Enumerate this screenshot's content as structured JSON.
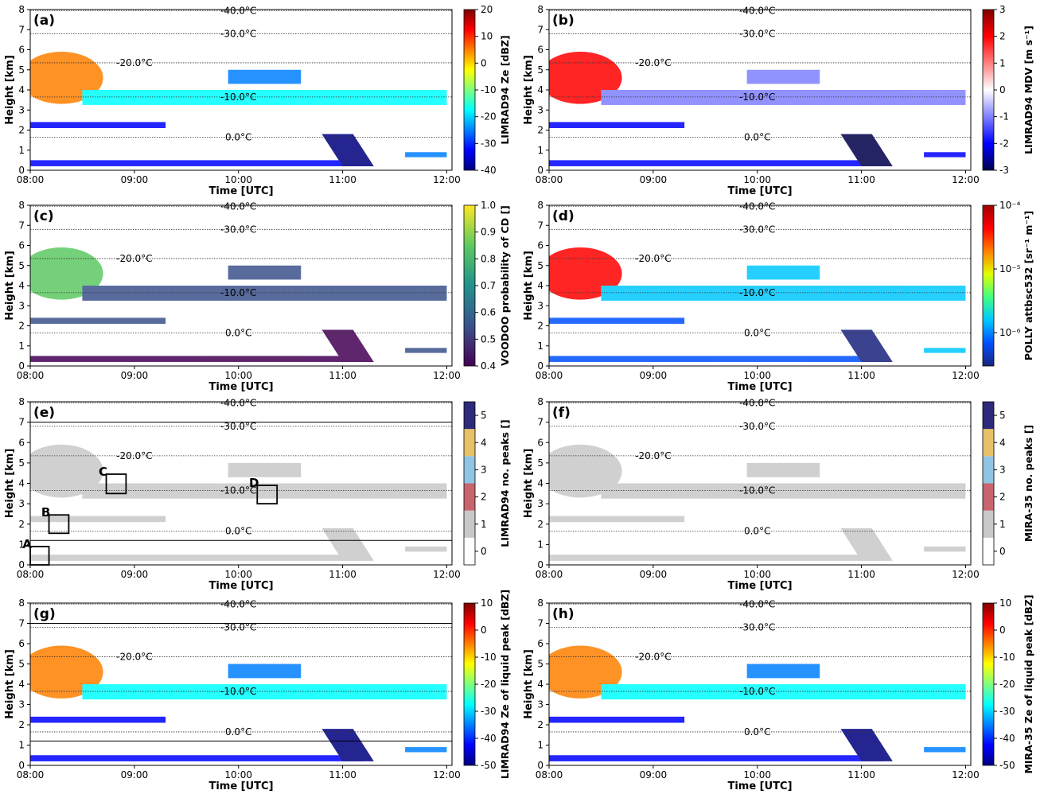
{
  "chart_data": [
    {
      "type": "heatmap",
      "panel": "(a)",
      "xlabel": "Time [UTC]",
      "ylabel": "Height [km]",
      "xlim": [
        8,
        12.05
      ],
      "xticks": [
        {
          "value": 8,
          "label": "08:00"
        },
        {
          "value": 9,
          "label": "09:00"
        },
        {
          "value": 10,
          "label": "10:00"
        },
        {
          "value": 11,
          "label": "11:00"
        },
        {
          "value": 12,
          "label": "12:00"
        }
      ],
      "ylim": [
        0,
        8
      ],
      "yticks": [
        0,
        1,
        2,
        3,
        4,
        5,
        6,
        7,
        8
      ],
      "isotherms": [
        {
          "label": "-40.0°C",
          "height": 7.95
        },
        {
          "label": "-30.0°C",
          "height": 6.8
        },
        {
          "label": "-20.0°C",
          "height": 5.35
        },
        {
          "label": "-10.0°C",
          "height": 3.65
        },
        {
          "label": "0.0°C",
          "height": 1.65
        }
      ],
      "colorbar": {
        "label": "LIMRAD94 Ze [dBZ]",
        "clim": [
          -40,
          20
        ],
        "cticks": [
          -40,
          -30,
          -20,
          -10,
          0,
          10,
          20
        ],
        "colormap": [
          "#00007f",
          "#0000ff",
          "#0080ff",
          "#00ffff",
          "#80ff80",
          "#ffff00",
          "#ff8000",
          "#ff0000",
          "#7f0000"
        ]
      }
    },
    {
      "type": "heatmap",
      "panel": "(b)",
      "xlabel": "Time [UTC]",
      "ylabel": "Height [km]",
      "xlim": [
        8,
        12.05
      ],
      "xticks": [
        {
          "value": 8,
          "label": "08:00"
        },
        {
          "value": 9,
          "label": "09:00"
        },
        {
          "value": 10,
          "label": "10:00"
        },
        {
          "value": 11,
          "label": "11:00"
        },
        {
          "value": 12,
          "label": "12:00"
        }
      ],
      "ylim": [
        0,
        8
      ],
      "yticks": [
        0,
        1,
        2,
        3,
        4,
        5,
        6,
        7,
        8
      ],
      "isotherms": [
        {
          "label": "-40.0°C",
          "height": 7.95
        },
        {
          "label": "-30.0°C",
          "height": 6.8
        },
        {
          "label": "-20.0°C",
          "height": 5.35
        },
        {
          "label": "-10.0°C",
          "height": 3.65
        },
        {
          "label": "0.0°C",
          "height": 1.65
        }
      ],
      "colorbar": {
        "label": "LIMRAD94 MDV [m s⁻¹]",
        "clim": [
          -3,
          3
        ],
        "cticks": [
          -3,
          -2,
          -1,
          0,
          1,
          2,
          3
        ],
        "colormap": [
          "#00004c",
          "#0000ff",
          "#8080ff",
          "#ffffff",
          "#ff8080",
          "#ff0000",
          "#800000"
        ]
      }
    },
    {
      "type": "heatmap",
      "panel": "(c)",
      "xlabel": "Time [UTC]",
      "ylabel": "Height [km]",
      "xlim": [
        8,
        12.05
      ],
      "xticks": [
        {
          "value": 8,
          "label": "08:00"
        },
        {
          "value": 9,
          "label": "09:00"
        },
        {
          "value": 10,
          "label": "10:00"
        },
        {
          "value": 11,
          "label": "11:00"
        },
        {
          "value": 12,
          "label": "12:00"
        }
      ],
      "ylim": [
        0,
        8
      ],
      "yticks": [
        0,
        1,
        2,
        3,
        4,
        5,
        6,
        7,
        8
      ],
      "isotherms": [
        {
          "label": "-40.0°C",
          "height": 7.95
        },
        {
          "label": "-30.0°C",
          "height": 6.8
        },
        {
          "label": "-20.0°C",
          "height": 5.35
        },
        {
          "label": "-10.0°C",
          "height": 3.65
        },
        {
          "label": "0.0°C",
          "height": 1.65
        }
      ],
      "colorbar": {
        "label": "VOODOO probability of CD []",
        "clim": [
          0.4,
          1.0
        ],
        "cticks": [
          0.4,
          0.5,
          0.6,
          0.7,
          0.8,
          0.9,
          {
            "value": 1.0,
            "label": "1.0"
          }
        ],
        "colormap": [
          "#440154",
          "#3b528b",
          "#21918c",
          "#5ec962",
          "#fde725"
        ]
      }
    },
    {
      "type": "heatmap",
      "panel": "(d)",
      "xlabel": "Time [UTC]",
      "ylabel": "Height [km]",
      "xlim": [
        8,
        12.05
      ],
      "xticks": [
        {
          "value": 8,
          "label": "08:00"
        },
        {
          "value": 9,
          "label": "09:00"
        },
        {
          "value": 10,
          "label": "10:00"
        },
        {
          "value": 11,
          "label": "11:00"
        },
        {
          "value": 12,
          "label": "12:00"
        }
      ],
      "ylim": [
        0,
        8
      ],
      "yticks": [
        0,
        1,
        2,
        3,
        4,
        5,
        6,
        7,
        8
      ],
      "isotherms": [
        {
          "label": "-40.0°C",
          "height": 7.95
        },
        {
          "label": "-30.0°C",
          "height": 6.8
        },
        {
          "label": "-20.0°C",
          "height": 5.35
        },
        {
          "label": "-10.0°C",
          "height": 3.65
        },
        {
          "label": "0.0°C",
          "height": 1.65
        }
      ],
      "colorbar": {
        "label": "POLLY attbsc532 [sr⁻¹ m⁻¹]",
        "log": true,
        "clim": [
          3e-07,
          0.0001
        ],
        "cticks": [
          {
            "value": 1e-06,
            "label": "10⁻⁶"
          },
          {
            "value": 1e-05,
            "label": "10⁻⁵"
          },
          {
            "value": 0.0001,
            "label": "10⁻⁴"
          }
        ],
        "colormap": [
          "#1a237e",
          "#0050ff",
          "#00c8ff",
          "#40ff80",
          "#e0ff00",
          "#ff8000",
          "#ff0000",
          "#a00000"
        ]
      }
    },
    {
      "type": "heatmap",
      "panel": "(e)",
      "xlabel": "Time [UTC]",
      "ylabel": "Height [km]",
      "xlim": [
        8,
        12.05
      ],
      "xticks": [
        {
          "value": 8,
          "label": "08:00"
        },
        {
          "value": 9,
          "label": "09:00"
        },
        {
          "value": 10,
          "label": "10:00"
        },
        {
          "value": 11,
          "label": "11:00"
        },
        {
          "value": 12,
          "label": "12:00"
        }
      ],
      "ylim": [
        0,
        8
      ],
      "yticks": [
        0,
        1,
        2,
        3,
        4,
        5,
        6,
        7,
        8
      ],
      "isotherms": [
        {
          "label": "-40.0°C",
          "height": 7.95
        },
        {
          "label": "-30.0°C",
          "height": 6.8
        },
        {
          "label": "-20.0°C",
          "height": 5.35
        },
        {
          "label": "-10.0°C",
          "height": 3.65
        },
        {
          "label": "0.0°C",
          "height": 1.65
        }
      ],
      "hlines": [
        7.0,
        1.2
      ],
      "boxes": [
        {
          "label": "A",
          "x": [
            8.0,
            8.18
          ],
          "y": [
            0,
            0.9
          ]
        },
        {
          "label": "B",
          "x": [
            8.18,
            8.37
          ],
          "y": [
            1.55,
            2.45
          ]
        },
        {
          "label": "C",
          "x": [
            8.73,
            8.92
          ],
          "y": [
            3.5,
            4.45
          ]
        },
        {
          "label": "D",
          "x": [
            10.18,
            10.37
          ],
          "y": [
            3.0,
            3.9
          ]
        }
      ],
      "colorbar": {
        "label": "LIMRAD94 no. peaks []",
        "discrete": true,
        "clim": [
          -0.5,
          5.5
        ],
        "cticks": [
          0,
          1,
          2,
          3,
          4,
          5
        ],
        "colormap": [
          "#ffffff",
          "#c8c8c8",
          "#c8646e",
          "#90c4e4",
          "#e8c068",
          "#2e2a7a"
        ]
      }
    },
    {
      "type": "heatmap",
      "panel": "(f)",
      "xlabel": "Time [UTC]",
      "ylabel": "Height [km]",
      "xlim": [
        8,
        12.05
      ],
      "xticks": [
        {
          "value": 8,
          "label": "08:00"
        },
        {
          "value": 9,
          "label": "09:00"
        },
        {
          "value": 10,
          "label": "10:00"
        },
        {
          "value": 11,
          "label": "11:00"
        },
        {
          "value": 12,
          "label": "12:00"
        }
      ],
      "ylim": [
        0,
        8
      ],
      "yticks": [
        0,
        1,
        2,
        3,
        4,
        5,
        6,
        7,
        8
      ],
      "isotherms": [
        {
          "label": "-40.0°C",
          "height": 7.95
        },
        {
          "label": "-30.0°C",
          "height": 6.8
        },
        {
          "label": "-20.0°C",
          "height": 5.35
        },
        {
          "label": "-10.0°C",
          "height": 3.65
        },
        {
          "label": "0.0°C",
          "height": 1.65
        }
      ],
      "colorbar": {
        "label": "MIRA-35 no. peaks []",
        "discrete": true,
        "clim": [
          -0.5,
          5.5
        ],
        "cticks": [
          0,
          1,
          2,
          3,
          4,
          5
        ],
        "colormap": [
          "#ffffff",
          "#c8c8c8",
          "#c8646e",
          "#90c4e4",
          "#e8c068",
          "#2e2a7a"
        ]
      }
    },
    {
      "type": "heatmap",
      "panel": "(g)",
      "xlabel": "Time [UTC]",
      "ylabel": "Height [km]",
      "xlim": [
        8,
        12.05
      ],
      "xticks": [
        {
          "value": 8,
          "label": "08:00"
        },
        {
          "value": 9,
          "label": "09:00"
        },
        {
          "value": 10,
          "label": "10:00"
        },
        {
          "value": 11,
          "label": "11:00"
        },
        {
          "value": 12,
          "label": "12:00"
        }
      ],
      "ylim": [
        0,
        8
      ],
      "yticks": [
        0,
        1,
        2,
        3,
        4,
        5,
        6,
        7,
        8
      ],
      "isotherms": [
        {
          "label": "-40.0°C",
          "height": 7.95
        },
        {
          "label": "-30.0°C",
          "height": 6.8
        },
        {
          "label": "-20.0°C",
          "height": 5.35
        },
        {
          "label": "-10.0°C",
          "height": 3.65
        },
        {
          "label": "0.0°C",
          "height": 1.65
        }
      ],
      "hlines": [
        7.0,
        1.2
      ],
      "colorbar": {
        "label": "LIMRAD94 Ze of liquid peak [dBZ]",
        "clim": [
          -50,
          10
        ],
        "cticks": [
          -50,
          -40,
          -30,
          -20,
          -10,
          0,
          10
        ],
        "colormap": [
          "#00007f",
          "#0000ff",
          "#0080ff",
          "#00ffff",
          "#80ff80",
          "#ffff00",
          "#ff8000",
          "#ff0000",
          "#7f0000"
        ]
      }
    },
    {
      "type": "heatmap",
      "panel": "(h)",
      "xlabel": "Time [UTC]",
      "ylabel": "Height [km]",
      "xlim": [
        8,
        12.05
      ],
      "xticks": [
        {
          "value": 8,
          "label": "08:00"
        },
        {
          "value": 9,
          "label": "09:00"
        },
        {
          "value": 10,
          "label": "10:00"
        },
        {
          "value": 11,
          "label": "11:00"
        },
        {
          "value": 12,
          "label": "12:00"
        }
      ],
      "ylim": [
        0,
        8
      ],
      "yticks": [
        0,
        1,
        2,
        3,
        4,
        5,
        6,
        7,
        8
      ],
      "isotherms": [
        {
          "label": "-40.0°C",
          "height": 7.95
        },
        {
          "label": "-30.0°C",
          "height": 6.8
        },
        {
          "label": "-20.0°C",
          "height": 5.35
        },
        {
          "label": "-10.0°C",
          "height": 3.65
        },
        {
          "label": "0.0°C",
          "height": 1.65
        }
      ],
      "colorbar": {
        "label": "MIRA-35 Ze of liquid peak [dBZ]",
        "clim": [
          -50,
          10
        ],
        "cticks": [
          -50,
          -40,
          -30,
          -20,
          -10,
          0,
          10
        ],
        "colormap": [
          "#00007f",
          "#0000ff",
          "#0080ff",
          "#00ffff",
          "#80ff80",
          "#ffff00",
          "#ff8000",
          "#ff0000",
          "#7f0000"
        ]
      }
    }
  ]
}
